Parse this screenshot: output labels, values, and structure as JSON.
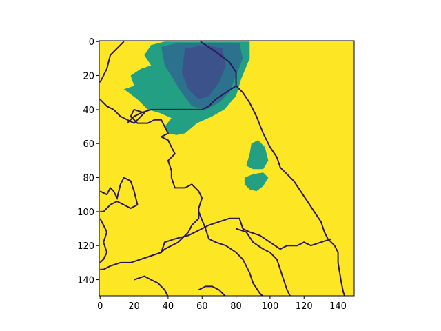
{
  "chart_data": {
    "type": "heatmap",
    "title": "",
    "xlabel": "",
    "ylabel": "",
    "xlim": [
      -0.5,
      149.5
    ],
    "ylim": [
      149.5,
      -0.5
    ],
    "x_ticks": [
      0,
      20,
      40,
      60,
      80,
      100,
      120,
      140
    ],
    "y_ticks": [
      0,
      20,
      40,
      60,
      80,
      100,
      120,
      140
    ],
    "colormap": "viridis",
    "colors": {
      "background_field": "#fde725",
      "cloud_light": "#23a083",
      "cloud_mid": "#2c728e",
      "cloud_dark": "#3b528b",
      "boundary": "#2a1858",
      "boundary_dark": "#440154"
    },
    "regions": [
      {
        "name": "cloud-north-mass",
        "level": "cloud_light",
        "polygon": [
          [
            30,
            2
          ],
          [
            38,
            0
          ],
          [
            88,
            0
          ],
          [
            88,
            10
          ],
          [
            83,
            22
          ],
          [
            80,
            32
          ],
          [
            73,
            40
          ],
          [
            66,
            44
          ],
          [
            57,
            48
          ],
          [
            50,
            54
          ],
          [
            45,
            55
          ],
          [
            40,
            54
          ],
          [
            38,
            50
          ],
          [
            42,
            45
          ],
          [
            35,
            42
          ],
          [
            28,
            40
          ],
          [
            22,
            34
          ],
          [
            14,
            28
          ],
          [
            20,
            26
          ],
          [
            18,
            20
          ],
          [
            24,
            16
          ],
          [
            30,
            14
          ],
          [
            26,
            8
          ]
        ]
      },
      {
        "name": "cloud-north-core",
        "level": "cloud_mid",
        "polygon": [
          [
            36,
            3
          ],
          [
            45,
            1
          ],
          [
            82,
            1
          ],
          [
            84,
            10
          ],
          [
            80,
            20
          ],
          [
            76,
            30
          ],
          [
            70,
            36
          ],
          [
            62,
            40
          ],
          [
            54,
            38
          ],
          [
            48,
            30
          ],
          [
            43,
            22
          ],
          [
            38,
            14
          ]
        ]
      },
      {
        "name": "cloud-north-darkest",
        "level": "cloud_dark",
        "polygon": [
          [
            50,
            4
          ],
          [
            62,
            2
          ],
          [
            72,
            4
          ],
          [
            74,
            14
          ],
          [
            70,
            24
          ],
          [
            64,
            32
          ],
          [
            58,
            34
          ],
          [
            52,
            28
          ],
          [
            48,
            18
          ]
        ]
      },
      {
        "name": "cloud-east-patch-1",
        "level": "cloud_light",
        "polygon": [
          [
            89,
            60
          ],
          [
            93,
            58
          ],
          [
            97,
            62
          ],
          [
            99,
            70
          ],
          [
            96,
            75
          ],
          [
            90,
            75
          ],
          [
            86,
            73
          ],
          [
            88,
            66
          ]
        ]
      },
      {
        "name": "cloud-east-patch-2",
        "level": "cloud_light",
        "polygon": [
          [
            85,
            80
          ],
          [
            90,
            78
          ],
          [
            96,
            77
          ],
          [
            99,
            80
          ],
          [
            96,
            85
          ],
          [
            92,
            88
          ],
          [
            88,
            87
          ],
          [
            85,
            84
          ]
        ]
      }
    ],
    "boundaries": [
      {
        "name": "border-north-east",
        "points": [
          [
            59,
            0
          ],
          [
            68,
            6
          ],
          [
            76,
            12
          ],
          [
            80,
            18
          ],
          [
            80,
            26
          ],
          [
            84,
            30
          ],
          [
            88,
            36
          ],
          [
            92,
            44
          ],
          [
            96,
            54
          ],
          [
            100,
            62
          ],
          [
            104,
            68
          ],
          [
            106,
            74
          ],
          [
            110,
            78
          ],
          [
            114,
            82
          ],
          [
            118,
            88
          ],
          [
            122,
            94
          ],
          [
            126,
            100
          ],
          [
            130,
            106
          ],
          [
            132,
            112
          ],
          [
            134,
            116
          ],
          [
            138,
            120
          ],
          [
            140,
            124
          ],
          [
            140,
            130
          ],
          [
            141,
            136
          ],
          [
            142,
            142
          ],
          [
            143,
            147
          ],
          [
            144,
            150
          ]
        ]
      },
      {
        "name": "border-north-west",
        "points": [
          [
            0,
            24
          ],
          [
            2,
            20
          ],
          [
            4,
            16
          ],
          [
            6,
            8
          ],
          [
            10,
            4
          ],
          [
            14,
            0
          ]
        ]
      },
      {
        "name": "border-central",
        "points": [
          [
            0,
            34
          ],
          [
            4,
            38
          ],
          [
            8,
            40
          ],
          [
            12,
            44
          ],
          [
            16,
            46
          ],
          [
            20,
            48
          ],
          [
            24,
            44
          ],
          [
            26,
            42
          ],
          [
            20,
            40
          ],
          [
            18,
            44
          ],
          [
            22,
            48
          ],
          [
            28,
            48
          ],
          [
            32,
            46
          ],
          [
            36,
            46
          ],
          [
            40,
            54
          ],
          [
            36,
            56
          ],
          [
            40,
            58
          ],
          [
            42,
            62
          ],
          [
            44,
            66
          ],
          [
            40,
            70
          ],
          [
            42,
            76
          ],
          [
            42,
            80
          ],
          [
            44,
            86
          ],
          [
            50,
            86
          ],
          [
            54,
            84
          ],
          [
            58,
            88
          ],
          [
            60,
            92
          ],
          [
            58,
            98
          ],
          [
            58,
            104
          ],
          [
            54,
            108
          ],
          [
            52,
            112
          ],
          [
            48,
            116
          ],
          [
            46,
            118
          ],
          [
            38,
            122
          ],
          [
            36,
            124
          ],
          [
            30,
            126
          ],
          [
            24,
            128
          ],
          [
            18,
            130
          ],
          [
            12,
            130
          ],
          [
            6,
            132
          ],
          [
            2,
            134
          ],
          [
            0,
            134
          ]
        ]
      },
      {
        "name": "border-west-1",
        "points": [
          [
            0,
            88
          ],
          [
            4,
            90
          ],
          [
            6,
            86
          ],
          [
            8,
            88
          ],
          [
            10,
            92
          ],
          [
            12,
            84
          ],
          [
            14,
            80
          ],
          [
            18,
            82
          ],
          [
            20,
            88
          ],
          [
            22,
            96
          ],
          [
            18,
            98
          ],
          [
            14,
            96
          ],
          [
            10,
            94
          ],
          [
            6,
            96
          ],
          [
            2,
            100
          ],
          [
            0,
            100
          ]
        ]
      },
      {
        "name": "border-west-2",
        "points": [
          [
            0,
            104
          ],
          [
            2,
            108
          ],
          [
            4,
            112
          ],
          [
            2,
            118
          ],
          [
            4,
            124
          ],
          [
            2,
            128
          ],
          [
            0,
            130
          ]
        ]
      },
      {
        "name": "border-center-line",
        "points": [
          [
            80,
            26
          ],
          [
            74,
            30
          ],
          [
            68,
            34
          ],
          [
            64,
            38
          ],
          [
            60,
            40
          ],
          [
            52,
            40
          ],
          [
            46,
            40
          ],
          [
            42,
            40
          ],
          [
            36,
            40
          ],
          [
            30,
            40
          ],
          [
            24,
            42
          ],
          [
            20,
            44
          ],
          [
            16,
            48
          ]
        ]
      },
      {
        "name": "border-south",
        "points": [
          [
            36,
            124
          ],
          [
            38,
            118
          ],
          [
            44,
            116
          ],
          [
            52,
            114
          ],
          [
            56,
            112
          ],
          [
            60,
            110
          ],
          [
            64,
            108
          ],
          [
            70,
            106
          ],
          [
            76,
            104
          ],
          [
            82,
            104
          ],
          [
            84,
            110
          ],
          [
            88,
            112
          ],
          [
            94,
            114
          ],
          [
            100,
            118
          ],
          [
            106,
            122
          ],
          [
            110,
            120
          ],
          [
            116,
            120
          ],
          [
            120,
            118
          ],
          [
            124,
            120
          ],
          [
            130,
            118
          ],
          [
            136,
            116
          ]
        ]
      },
      {
        "name": "border-south-2",
        "points": [
          [
            58,
            100
          ],
          [
            62,
            110
          ],
          [
            64,
            116
          ],
          [
            68,
            118
          ],
          [
            74,
            120
          ],
          [
            80,
            124
          ],
          [
            84,
            128
          ],
          [
            86,
            132
          ],
          [
            88,
            136
          ],
          [
            90,
            142
          ],
          [
            94,
            148
          ],
          [
            96,
            150
          ]
        ]
      },
      {
        "name": "border-south-3",
        "points": [
          [
            20,
            140
          ],
          [
            26,
            138
          ],
          [
            30,
            140
          ],
          [
            34,
            142
          ],
          [
            38,
            146
          ],
          [
            40,
            150
          ]
        ]
      },
      {
        "name": "border-south-4",
        "points": [
          [
            58,
            146
          ],
          [
            62,
            144
          ],
          [
            66,
            144
          ],
          [
            70,
            146
          ],
          [
            74,
            150
          ]
        ]
      },
      {
        "name": "border-south-5",
        "points": [
          [
            80,
            110
          ],
          [
            86,
            112
          ],
          [
            90,
            118
          ],
          [
            96,
            122
          ],
          [
            100,
            124
          ]
        ]
      },
      {
        "name": "border-south-6",
        "points": [
          [
            100,
            124
          ],
          [
            104,
            128
          ],
          [
            106,
            134
          ],
          [
            108,
            140
          ],
          [
            110,
            146
          ],
          [
            112,
            150
          ]
        ]
      }
    ]
  }
}
